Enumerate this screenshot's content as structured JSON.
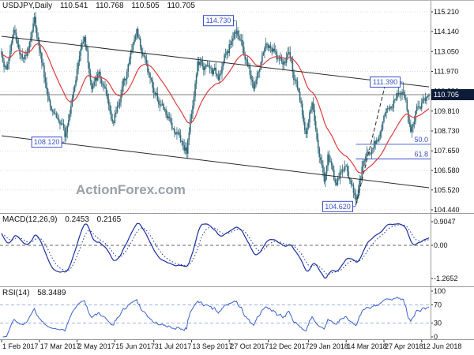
{
  "branding": {
    "watermark": "ActionForex.com"
  },
  "header": {
    "symbol": "USDJPY,Daily",
    "open": "110.541",
    "high": "110.768",
    "low": "110.505",
    "close": "110.705"
  },
  "indicators": {
    "macd": {
      "label": "MACD(12,26,9)",
      "macd_value": "0.2453",
      "signal_value": "0.2165",
      "axis": [
        {
          "label": "0.9047",
          "value": 0.9047
        },
        {
          "label": "0.00",
          "value": 0
        },
        {
          "label": "-1.2652",
          "value": -1.2652
        }
      ]
    },
    "rsi": {
      "label": "RSI(14)",
      "value": "58.3489",
      "axis": [
        {
          "label": "100",
          "value": 100
        },
        {
          "label": "70",
          "value": 70
        },
        {
          "label": "30",
          "value": 30
        },
        {
          "label": "0",
          "value": 0
        }
      ],
      "upper_band": 70,
      "lower_band": 30
    }
  },
  "chart_data": {
    "type": "candlestick",
    "symbol": "USDJPY",
    "timeframe": "Daily",
    "current_price": 110.705,
    "price_axis_labels": [
      115.21,
      114.14,
      113.05,
      111.97,
      110.89,
      109.81,
      108.73,
      107.65,
      106.58,
      105.52,
      104.44
    ],
    "x_axis_dates": [
      "1 Feb 2017",
      "17 Mar 2017",
      "2 May 2017",
      "15 Jun 2017",
      "31 Jul 2017",
      "13 Sep 2017",
      "27 Oct 2017",
      "12 Dec 2017",
      "29 Jan 2018",
      "14 Mar 2018",
      "27 Apr 2018",
      "12 Jun 2018"
    ],
    "date_tick_indices": [
      0,
      31,
      62,
      93,
      125,
      156,
      187,
      219,
      252,
      283,
      314,
      345
    ],
    "candle_count": 352,
    "close_anchors": [
      [
        0,
        112.9
      ],
      [
        4,
        112.0
      ],
      [
        10,
        114.2
      ],
      [
        18,
        112.4
      ],
      [
        27,
        114.8
      ],
      [
        38,
        110.7
      ],
      [
        52,
        108.5
      ],
      [
        60,
        111.5
      ],
      [
        68,
        114.1
      ],
      [
        74,
        111.0
      ],
      [
        80,
        111.8
      ],
      [
        92,
        109.2
      ],
      [
        111,
        114.2
      ],
      [
        125,
        110.9
      ],
      [
        138,
        109.2
      ],
      [
        145,
        108.6
      ],
      [
        152,
        107.7
      ],
      [
        161,
        112.4
      ],
      [
        178,
        111.8
      ],
      [
        193,
        114.4
      ],
      [
        207,
        111.1
      ],
      [
        218,
        113.4
      ],
      [
        232,
        112.3
      ],
      [
        236,
        113.0
      ],
      [
        250,
        108.7
      ],
      [
        255,
        110.1
      ],
      [
        265,
        106.1
      ],
      [
        268,
        107.5
      ],
      [
        275,
        105.8
      ],
      [
        282,
        106.9
      ],
      [
        291,
        105.0
      ],
      [
        298,
        107.2
      ],
      [
        310,
        108.6
      ],
      [
        317,
        109.8
      ],
      [
        330,
        111.2
      ],
      [
        336,
        108.5
      ],
      [
        342,
        110.2
      ],
      [
        349,
        110.5
      ],
      [
        351,
        110.705
      ]
    ],
    "callouts": [
      {
        "label": "114.730",
        "price": 114.73,
        "index": 193
      },
      {
        "label": "111.390",
        "price": 111.39,
        "index": 330
      },
      {
        "label": "108.120",
        "price": 108.12,
        "index": 52
      },
      {
        "label": "104.620",
        "price": 104.62,
        "index": 291
      }
    ],
    "fib_levels": [
      {
        "label": "50.0",
        "price": 108.005
      },
      {
        "label": "61.8",
        "price": 107.206
      }
    ],
    "fib_start_index": 291,
    "trend_lines": [
      {
        "name": "channel-upper-trendline",
        "style": "solid",
        "points": [
          [
            0,
            113.88
          ],
          [
            351,
            111.13
          ]
        ]
      },
      {
        "name": "channel-lower-trendline",
        "style": "solid",
        "points": [
          [
            0,
            108.47
          ],
          [
            351,
            105.64
          ]
        ]
      },
      {
        "name": "steep-support-trendline",
        "style": "dashed",
        "points": [
          [
            291,
            104.7
          ],
          [
            315,
            111.22
          ]
        ]
      }
    ],
    "colors": {
      "candle": "#336b7c",
      "ma": "#e03c3c",
      "macd": "#1c2f9e",
      "rsi": "#3b61d1",
      "rsi_band": "#8fa6e6",
      "callout": "#3a50c8",
      "fib": "#3a50c8",
      "watermark": "#9aa0a8",
      "price_tag_bg": "#0c1c38",
      "trend": "#2b2b2b",
      "grid": "#dcdcdc",
      "axis_text": "#111111",
      "separator": "#9a9a9a"
    }
  }
}
